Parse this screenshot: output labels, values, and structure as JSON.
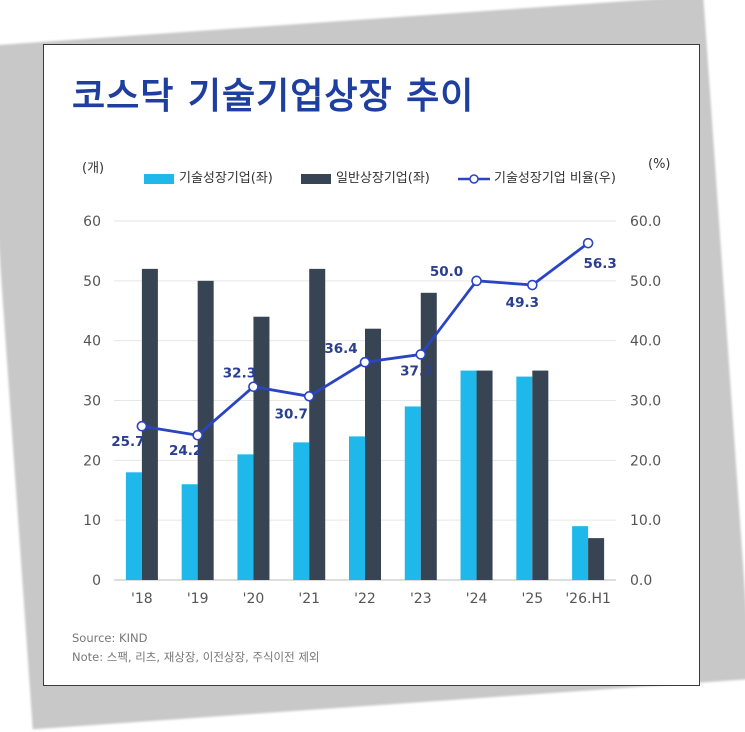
{
  "title": "코스닥 기술기업상장 추이",
  "unit_left": "(개)",
  "unit_right": "(%)",
  "legend": {
    "tech": "기술성장기업(좌)",
    "general": "일반상장기업(좌)",
    "ratio": "기술성장기업 비율(우)"
  },
  "source": "Source: KIND",
  "note": "Note: 스팩, 리츠, 재상장, 이전상장, 주식이전 제외",
  "colors": {
    "tech": "#1fb8ea",
    "general": "#374454",
    "ratio": "#2a44c4",
    "title": "#1e3fa0"
  },
  "chart_data": {
    "type": "bar",
    "categories": [
      "'18",
      "'19",
      "'20",
      "'21",
      "'22",
      "'23",
      "'24",
      "'25",
      "'26.H1"
    ],
    "series": [
      {
        "name": "기술성장기업(좌)",
        "type": "bar",
        "axis": "left",
        "values": [
          18,
          16,
          21,
          23,
          24,
          29,
          35,
          34,
          9
        ]
      },
      {
        "name": "일반상장기업(좌)",
        "type": "bar",
        "axis": "left",
        "values": [
          52,
          50,
          44,
          52,
          42,
          48,
          35,
          35,
          7
        ]
      },
      {
        "name": "기술성장기업 비율(우)",
        "type": "line",
        "axis": "right",
        "values": [
          25.7,
          24.2,
          32.3,
          30.7,
          36.4,
          37.7,
          50.0,
          49.3,
          56.3
        ],
        "labels": [
          "25.7",
          "24.2",
          "32.3",
          "30.7",
          "36.4",
          "37.7",
          "50.0",
          "49.3",
          "56.3"
        ]
      }
    ],
    "y_left": {
      "lim": [
        0,
        60
      ],
      "ticks": [
        "0",
        "10",
        "20",
        "30",
        "40",
        "50",
        "60"
      ]
    },
    "y_right": {
      "lim": [
        0,
        60
      ],
      "ticks": [
        "0.0",
        "10.0",
        "20.0",
        "30.0",
        "40.0",
        "50.0",
        "60.0"
      ]
    },
    "grid": true,
    "legend_position": "top"
  }
}
